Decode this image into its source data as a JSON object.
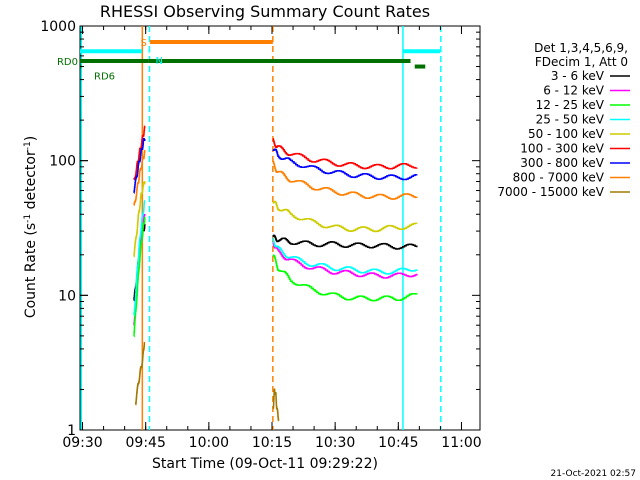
{
  "chart_data": {
    "type": "line",
    "title": "RHESSI Observing Summary Count Rates",
    "xlabel": "Start Time (09-Oct-11 09:29:22)",
    "ylabel_prefix": "Count Rate (s",
    "ylabel_sup1": "-1",
    "ylabel_mid": " detector",
    "ylabel_sup2": "-1",
    "ylabel_suffix": ")",
    "ylog": true,
    "ylim": [
      1,
      1000
    ],
    "xlim_minutes": [
      0,
      95
    ],
    "x_ticks": [
      {
        "label": "09:30",
        "minutes": 0.6
      },
      {
        "label": "09:45",
        "minutes": 15.6
      },
      {
        "label": "10:00",
        "minutes": 30.6
      },
      {
        "label": "10:15",
        "minutes": 45.6
      },
      {
        "label": "10:30",
        "minutes": 60.6
      },
      {
        "label": "10:45",
        "minutes": 75.6
      },
      {
        "label": "11:00",
        "minutes": 90.6
      }
    ],
    "y_ticks": [
      {
        "label": "1",
        "value": 1
      },
      {
        "label": "10",
        "value": 10
      },
      {
        "label": "100",
        "value": 100
      },
      {
        "label": "1000",
        "value": 1000
      }
    ],
    "legend": {
      "header": [
        "Det 1,3,4,5,6,9,",
        "FDecim 1, Att 0"
      ],
      "placement": "right"
    },
    "series": [
      {
        "name": "3 - 6 keV",
        "color": "#000000",
        "segments": [
          {
            "x": [
              12.8,
              13.5,
              14.0,
              14.5,
              15.0,
              15.4
            ],
            "y": [
              9,
              14,
              20,
              26,
              30,
              33
            ]
          },
          {
            "x": [
              45.8,
              47,
              50,
              55,
              60,
              65,
              70,
              75,
              80
            ],
            "y": [
              27,
              26,
              25,
              24,
              24,
              23.5,
              23.5,
              23,
              23
            ]
          }
        ]
      },
      {
        "name": "6 - 12 keV",
        "color": "#ff00ff",
        "segments": [
          {
            "x": [
              12.8,
              13.5,
              14.0,
              14.5,
              15.0,
              15.4
            ],
            "y": [
              6,
              12,
              18,
              26,
              34,
              40
            ]
          },
          {
            "x": [
              45.8,
              47,
              50,
              55,
              60,
              65,
              70,
              75,
              80
            ],
            "y": [
              25,
              21,
              18,
              16,
              15,
              14.5,
              14,
              14,
              14.5
            ]
          }
        ]
      },
      {
        "name": "12 - 25 keV",
        "color": "#00ff00",
        "segments": [
          {
            "x": [
              12.8,
              13.5,
              14.0,
              14.5,
              15.0,
              15.4
            ],
            "y": [
              5,
              10,
              16,
              24,
              32,
              38
            ]
          },
          {
            "x": [
              45.8,
              47,
              50,
              55,
              60,
              65,
              70,
              75,
              80
            ],
            "y": [
              20,
              16,
              13,
              11,
              10,
              9.5,
              9.5,
              9.5,
              10
            ]
          }
        ]
      },
      {
        "name": "25 - 50 keV",
        "color": "#00ffff",
        "segments": [
          {
            "x": [
              12.8,
              13.5,
              14.0,
              14.5,
              15.0,
              15.4
            ],
            "y": [
              7,
              14,
              22,
              32,
              42,
              50
            ]
          },
          {
            "x": [
              45.8,
              47,
              50,
              55,
              60,
              65,
              70,
              75,
              80
            ],
            "y": [
              26,
              22,
              19,
              17,
              16,
              15.5,
              15,
              15,
              16
            ]
          }
        ]
      },
      {
        "name": "50 - 100 keV",
        "color": "#cccc00",
        "segments": [
          {
            "x": [
              12.8,
              13.5,
              14.0,
              14.5,
              15.0,
              15.4
            ],
            "y": [
              20,
              30,
              42,
              55,
              65,
              72
            ]
          },
          {
            "x": [
              45.8,
              47,
              50,
              55,
              60,
              65,
              70,
              75,
              80
            ],
            "y": [
              50,
              45,
              40,
              35,
              32,
              31,
              31,
              32,
              33
            ]
          }
        ]
      },
      {
        "name": "100 - 300 keV",
        "color": "#ff0000",
        "segments": [
          {
            "x": [
              12.8,
              13.5,
              14.0,
              14.5,
              15.0,
              15.4
            ],
            "y": [
              70,
              90,
              110,
              130,
              155,
              175
            ]
          },
          {
            "x": [
              45.8,
              47,
              50,
              55,
              60,
              65,
              70,
              75,
              80
            ],
            "y": [
              140,
              125,
              112,
              102,
              96,
              92,
              90,
              91,
              92
            ]
          }
        ]
      },
      {
        "name": "300 - 800 keV",
        "color": "#0000ff",
        "segments": [
          {
            "x": [
              12.8,
              13.5,
              14.0,
              14.5,
              15.0,
              15.4
            ],
            "y": [
              60,
              78,
              96,
              115,
              135,
              150
            ]
          },
          {
            "x": [
              45.8,
              47,
              50,
              55,
              60,
              65,
              70,
              75,
              80
            ],
            "y": [
              125,
              110,
              98,
              88,
              82,
              78,
              76,
              75,
              76
            ]
          }
        ]
      },
      {
        "name": "800 - 7000 keV",
        "color": "#ff8000",
        "segments": [
          {
            "x": [
              12.8,
              13.5,
              14.0,
              14.5,
              15.0,
              15.4
            ],
            "y": [
              45,
              60,
              75,
              90,
              105,
              115
            ]
          },
          {
            "x": [
              45.8,
              47,
              50,
              55,
              60,
              65,
              70,
              75,
              80
            ],
            "y": [
              95,
              82,
              72,
              64,
              59,
              56,
              54,
              54,
              55
            ]
          }
        ]
      },
      {
        "name": "7000 - 15000 keV",
        "color": "#a07800",
        "segments": [
          {
            "x": [
              13.2,
              13.8,
              14.4,
              14.9,
              15.3
            ],
            "y": [
              1.6,
              2.2,
              2.8,
              3.4,
              4.6
            ]
          },
          {
            "x": [
              45.9,
              46.2,
              46.5,
              46.8,
              47.2
            ],
            "y": [
              1.5,
              2.0,
              1.8,
              1.4,
              1.2
            ]
          }
        ]
      }
    ],
    "state_bars": [
      {
        "label": "RD0",
        "color": "#007000",
        "y": 550,
        "segments": [
          [
            0,
            16.3
          ],
          [
            16.3,
            78.5
          ]
        ]
      },
      {
        "label": "RD6",
        "color": "#007000",
        "y": 500,
        "segments": [
          [
            -1,
            0.3
          ],
          [
            79.5,
            82
          ]
        ]
      },
      {
        "label": "S",
        "color": "#ff8000",
        "y": 760,
        "segments": [
          [
            16.6,
            45.8
          ]
        ]
      },
      {
        "label": "N",
        "color": "#00ffff",
        "y": 650,
        "segments": [
          [
            0,
            14.7
          ],
          [
            16.3,
            16.5
          ],
          [
            76.6,
            85.6
          ]
        ]
      }
    ],
    "vertical_lines": [
      {
        "minutes": 0.3,
        "color": "#00ffff",
        "style": "solid"
      },
      {
        "minutes": 14.8,
        "color": "#ff8000",
        "style": "solid"
      },
      {
        "minutes": 16.5,
        "color": "#00ffff",
        "style": "dashed"
      },
      {
        "minutes": 45.8,
        "color": "#ff8000",
        "style": "dashed"
      },
      {
        "minutes": 76.7,
        "color": "#00ffff",
        "style": "solid"
      },
      {
        "minutes": 85.7,
        "color": "#00ffff",
        "style": "dashed"
      }
    ],
    "timestamp": "21-Oct-2021 02:57"
  }
}
